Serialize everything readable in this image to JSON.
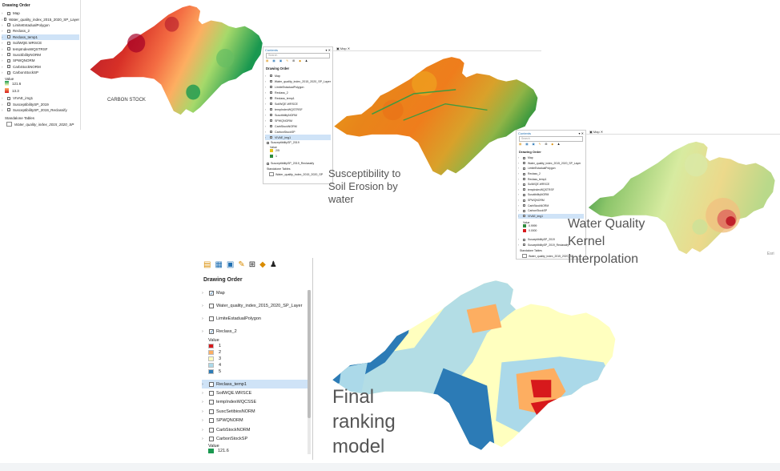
{
  "panel1": {
    "heading": "Drawing Order",
    "items": [
      {
        "label": "Map"
      },
      {
        "label": "Water_quality_index_2015_2020_SP_Layer"
      },
      {
        "label": "LimiteEstadualPolygon"
      },
      {
        "label": "Reclass_2"
      },
      {
        "label": "Reclass_temp1"
      },
      {
        "label": "SoilWQE.WRSCE"
      },
      {
        "label": "tempIndexWQSTRSF"
      },
      {
        "label": "SusctibilityNORM"
      },
      {
        "label": "SPWQNORM"
      },
      {
        "label": "CarbStockNORM"
      },
      {
        "label": "CarbonStockSP"
      }
    ],
    "value_label": "Value",
    "value_high": "121.6",
    "value_low": "13.3",
    "more_items": [
      {
        "label": "VIVAE_img1"
      },
      {
        "label": "SusceptibilitySP_2019"
      },
      {
        "label": "SusceptibilitySP_2019_Reclassify"
      }
    ],
    "tables_heading": "Standalone Tables",
    "table_item": "Water_quality_index_2015_2020_SP"
  },
  "carbon_caption": "CARBON STOCK",
  "panel2": {
    "title": "Contents",
    "search_placeholder": "Search",
    "heading": "Drawing Order",
    "map_tab": "Map",
    "items": [
      {
        "label": "Map"
      },
      {
        "label": "Water_quality_index_2015_2020_SP_Layer"
      },
      {
        "label": "LimiteEstadualPolygon"
      },
      {
        "label": "Reclass_2"
      },
      {
        "label": "Reclass_temp1"
      },
      {
        "label": "SoilWQE.WRSCE"
      },
      {
        "label": "tempIndexWQSTRSF"
      },
      {
        "label": "SusctibilityNORM"
      },
      {
        "label": "SPWQNORM"
      },
      {
        "label": "CarbStockNORM"
      },
      {
        "label": "CarbonStockSP"
      },
      {
        "label": "VIVAE_img1"
      }
    ],
    "sub_item": "SusceptibilitySP_2019",
    "value_label": "Value",
    "value_high": "2/5",
    "value_low": "1",
    "reclass_item": "SusceptibilitySP_2019_Reclassify",
    "tables_heading": "Standalone Tables",
    "table_item": "Water_quality_index_2015_2020_SP"
  },
  "susceptibility_caption": "Susceptibility to Soil Erosion by water",
  "panel3": {
    "title": "Contents",
    "search_placeholder": "Search",
    "heading": "Drawing Order",
    "map_tab": "Map",
    "items": [
      {
        "label": "Map"
      },
      {
        "label": "Water_quality_index_2015_2020_SP_Layer"
      },
      {
        "label": "LimiteEstadualPolygon"
      },
      {
        "label": "Reclass_2"
      },
      {
        "label": "Reclass_temp1"
      },
      {
        "label": "SoilWQE.WRSCE"
      },
      {
        "label": "tempIndexWQSTRSF"
      },
      {
        "label": "SusctibilityNORM"
      },
      {
        "label": "SPWQNORM"
      },
      {
        "label": "CarbStockNORM"
      },
      {
        "label": "CarbonStockSP"
      },
      {
        "label": "VIVAE_img1"
      }
    ],
    "value_label": "Value",
    "value_high": "0.9999",
    "value_low": "0.0000",
    "more_items": [
      {
        "label": "SusceptibilitySP_2019"
      },
      {
        "label": "SusceptibilitySP_2019_Reclassify"
      }
    ],
    "tables_heading": "Standalone Tables",
    "table_item": "Water_quality_index_2015_2020_SP"
  },
  "wq_caption": "Water Quality Kernel Interpolation",
  "esri_credit": "Esri",
  "panel4": {
    "heading": "Drawing Order",
    "items": [
      {
        "label": "Map",
        "checked": true
      },
      {
        "label": "Water_quality_index_2015_2020_SP_Layer",
        "checked": false
      },
      {
        "label": "LimiteEstadualPolygon",
        "checked": false
      },
      {
        "label": "Reclass_2",
        "checked": true
      }
    ],
    "value_label": "Value",
    "legend": [
      {
        "label": "1",
        "color": "#d7191c"
      },
      {
        "label": "2",
        "color": "#fdae61"
      },
      {
        "label": "3",
        "color": "#ffffbf"
      },
      {
        "label": "4",
        "color": "#abd9e9"
      },
      {
        "label": "5",
        "color": "#2c7bb6"
      }
    ],
    "items2": [
      {
        "label": "Reclass_temp1"
      },
      {
        "label": "SoilWQE.WRSCE"
      },
      {
        "label": "tempIndexWQCSSE"
      },
      {
        "label": "SuscSetibiosNORM"
      },
      {
        "label": "SPWQNORM"
      },
      {
        "label": "CarbStockNORM"
      },
      {
        "label": "CarbonStockSP"
      }
    ],
    "value_label2": "Value",
    "value_high": "121.6"
  },
  "final_caption": "Final ranking model",
  "colors": {
    "selection": "#cfe3f7",
    "rank1": "#d7191c",
    "rank2": "#fdae61",
    "rank3": "#ffffbf",
    "rank4": "#abd9e9",
    "rank5": "#2c7bb6"
  }
}
